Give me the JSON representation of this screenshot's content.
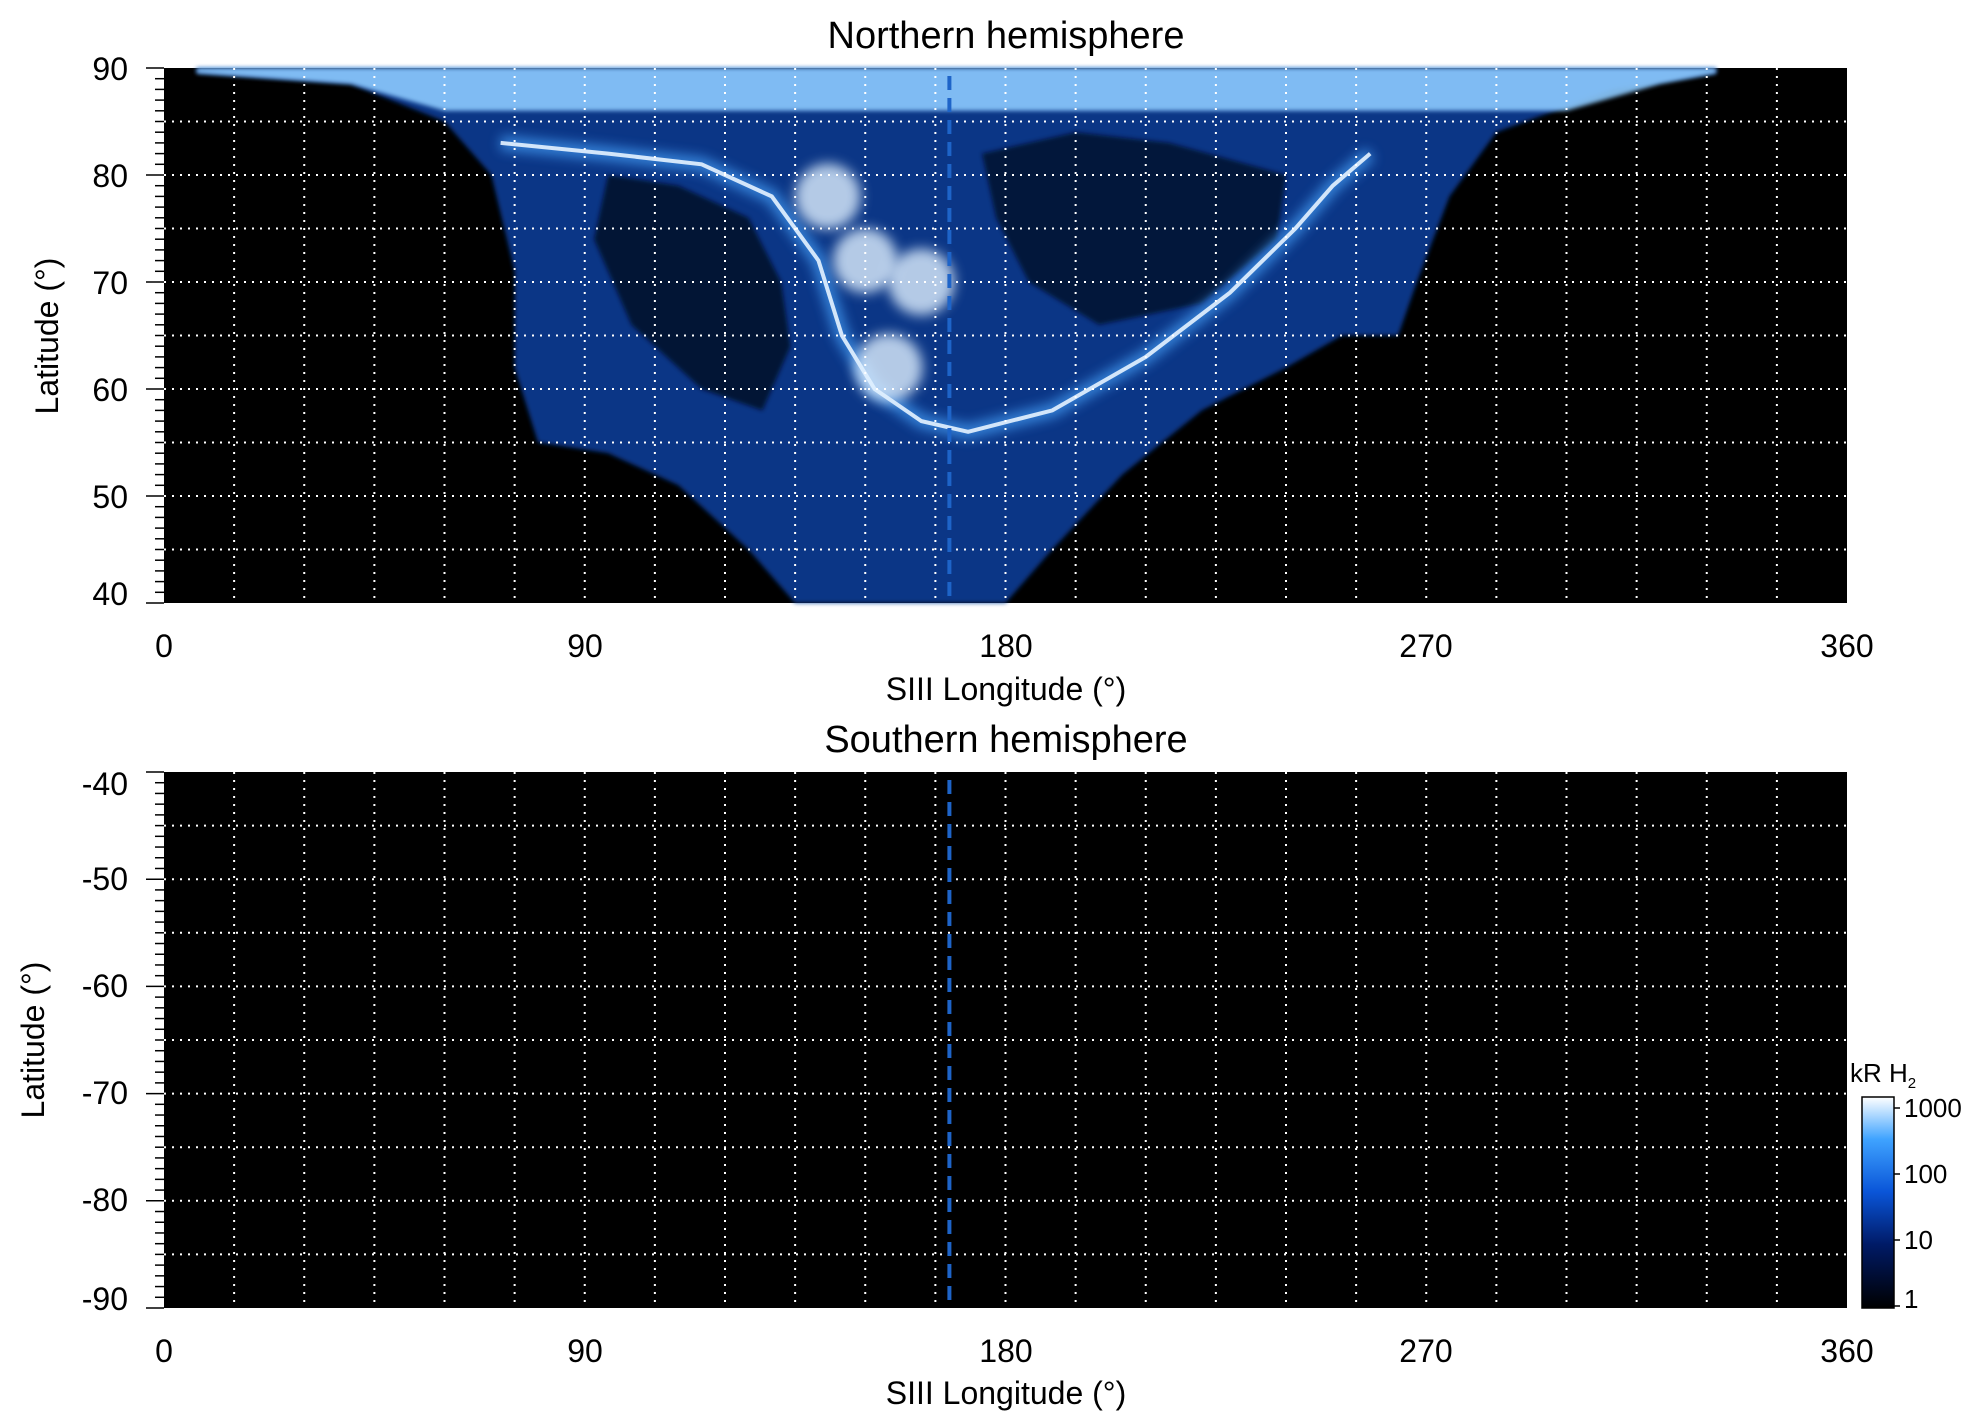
{
  "chart_data": [
    {
      "type": "heatmap",
      "title": "Northern hemisphere",
      "xlabel": "SIII Longitude (°)",
      "ylabel": "Latitude (°)",
      "xlim": [
        0,
        360
      ],
      "ylim": [
        40,
        90
      ],
      "xticks": [
        "0",
        "90",
        "180",
        "270",
        "360"
      ],
      "yticks": [
        "90",
        "80",
        "70",
        "60",
        "50",
        "40"
      ],
      "grid": "dotted white, every 15° longitude and 5° latitude",
      "background": "#000000",
      "reference_line": {
        "longitude": 168,
        "style": "dashed",
        "color": "#1e64c8"
      },
      "emission_region": {
        "description_type": "auroral emission, brightness in kR H2",
        "outer_boundary": [
          {
            "lon": 7,
            "lat": 89.5
          },
          {
            "lon": 40,
            "lat": 88.5
          },
          {
            "lon": 60,
            "lat": 85
          },
          {
            "lon": 70,
            "lat": 80
          },
          {
            "lon": 75,
            "lat": 71
          },
          {
            "lon": 75,
            "lat": 62
          },
          {
            "lon": 80,
            "lat": 55
          },
          {
            "lon": 95,
            "lat": 54
          },
          {
            "lon": 110,
            "lat": 51
          },
          {
            "lon": 125,
            "lat": 45
          },
          {
            "lon": 135,
            "lat": 40
          },
          {
            "lon": 180,
            "lat": 40
          },
          {
            "lon": 190,
            "lat": 45
          },
          {
            "lon": 205,
            "lat": 52
          },
          {
            "lon": 222,
            "lat": 58
          },
          {
            "lon": 240,
            "lat": 62
          },
          {
            "lon": 252,
            "lat": 65
          },
          {
            "lon": 264,
            "lat": 65
          },
          {
            "lon": 268,
            "lat": 70
          },
          {
            "lon": 275,
            "lat": 78
          },
          {
            "lon": 285,
            "lat": 84
          },
          {
            "lon": 310,
            "lat": 88
          },
          {
            "lon": 332,
            "lat": 89.5
          }
        ],
        "main_oval": [
          {
            "lon": 72,
            "lat": 83
          },
          {
            "lon": 95,
            "lat": 82
          },
          {
            "lon": 115,
            "lat": 81
          },
          {
            "lon": 130,
            "lat": 78
          },
          {
            "lon": 140,
            "lat": 72
          },
          {
            "lon": 145,
            "lat": 65
          },
          {
            "lon": 152,
            "lat": 60
          },
          {
            "lon": 162,
            "lat": 57
          },
          {
            "lon": 172,
            "lat": 56
          },
          {
            "lon": 190,
            "lat": 58
          },
          {
            "lon": 210,
            "lat": 63
          },
          {
            "lon": 228,
            "lat": 69
          },
          {
            "lon": 242,
            "lat": 75
          },
          {
            "lon": 250,
            "lat": 79
          },
          {
            "lon": 258,
            "lat": 82
          }
        ],
        "bright_spots": [
          {
            "lon": 155,
            "lat": 62,
            "kR": 1000
          },
          {
            "lon": 162,
            "lat": 70,
            "kR": 800
          },
          {
            "lon": 150,
            "lat": 72,
            "kR": 600
          },
          {
            "lon": 142,
            "lat": 78,
            "kR": 700
          }
        ]
      }
    },
    {
      "type": "heatmap",
      "title": "Southern hemisphere",
      "xlabel": "SIII Longitude (°)",
      "ylabel": "Latitude (°)",
      "xlim": [
        0,
        360
      ],
      "ylim": [
        -90,
        -40
      ],
      "xticks": [
        "0",
        "90",
        "180",
        "270",
        "360"
      ],
      "yticks": [
        "-40",
        "-50",
        "-60",
        "-70",
        "-80",
        "-90"
      ],
      "grid": "dotted white, every 15° longitude and 5° latitude",
      "background": "#000000",
      "reference_line": {
        "longitude": 168,
        "style": "dashed",
        "color": "#1e64c8"
      }
    }
  ],
  "colorbar": {
    "label": "kR H",
    "label_sub": "2",
    "scale": "log",
    "range": [
      1,
      1000
    ],
    "ticks": [
      "1000",
      "100",
      "10",
      "1"
    ],
    "colors": [
      "#000000",
      "#001a66",
      "#0a55d8",
      "#3fa3ff",
      "#ffffff"
    ]
  }
}
